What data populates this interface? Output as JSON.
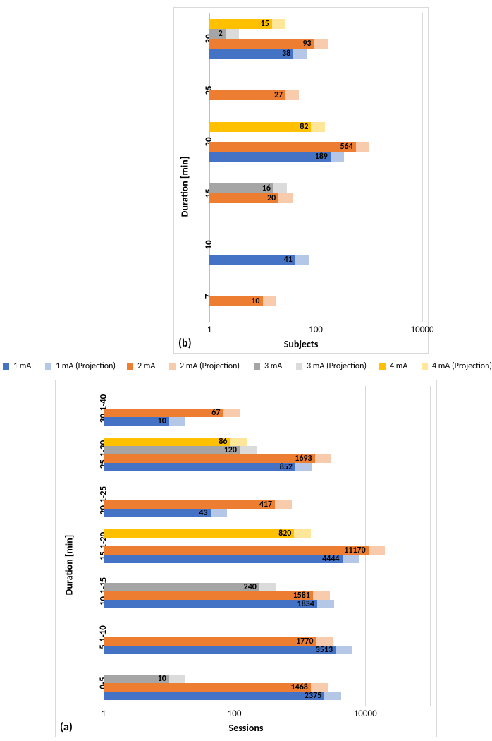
{
  "colors": {
    "blue": "#4472c4",
    "blue_proj": "#b4c7e7",
    "orange": "#ed7d31",
    "orange_proj": "#f8cbad",
    "gray": "#a5a5a5",
    "gray_proj": "#dbdbdb",
    "yellow": "#ffc000",
    "yellow_proj": "#ffe699",
    "gridline": "#d9d9d9",
    "border": "#d9d9d9",
    "axis": "#595959",
    "text": "#000000"
  },
  "legend": [
    {
      "label": "1 mA",
      "color": "#4472c4"
    },
    {
      "label": "1 mA (Projection)",
      "color": "#b4c7e7"
    },
    {
      "label": "2 mA",
      "color": "#ed7d31"
    },
    {
      "label": "2 mA (Projection)",
      "color": "#f8cbad"
    },
    {
      "label": "3 mA",
      "color": "#a5a5a5"
    },
    {
      "label": "3 mA (Projection)",
      "color": "#dbdbdb"
    },
    {
      "label": "4 mA",
      "color": "#ffc000"
    },
    {
      "label": "4 mA (Projection)",
      "color": "#ffe699"
    }
  ],
  "chart_b": {
    "panel_label": "(b)",
    "x_label": "Subjects",
    "y_label": "Duration [min]",
    "x_ticks": [
      "1",
      "100",
      "10000"
    ],
    "x_domain": [
      0,
      4
    ],
    "categories": [
      "7",
      "10",
      "15",
      "20",
      "25",
      "30"
    ],
    "proj_mult": 1.8,
    "groups": [
      {
        "cat": "7",
        "bars": [
          {
            "series": "2",
            "value": 10,
            "label": "10"
          }
        ]
      },
      {
        "cat": "10",
        "bars": [
          {
            "series": "1",
            "value": 41,
            "label": "41"
          }
        ]
      },
      {
        "cat": "15",
        "bars": [
          {
            "series": "2",
            "value": 20,
            "label": "20"
          },
          {
            "series": "3",
            "value": 16,
            "label": "16"
          }
        ]
      },
      {
        "cat": "20",
        "bars": [
          {
            "series": "1",
            "value": 189,
            "label": "189"
          },
          {
            "series": "2",
            "value": 564,
            "label": "564"
          },
          {
            "series": "4",
            "value": 82,
            "label": "82"
          }
        ]
      },
      {
        "cat": "25",
        "bars": [
          {
            "series": "2",
            "value": 27,
            "label": "27"
          }
        ]
      },
      {
        "cat": "30",
        "bars": [
          {
            "series": "1",
            "value": 38,
            "label": "38"
          },
          {
            "series": "2",
            "value": 93,
            "label": "93"
          },
          {
            "series": "3",
            "value": 2,
            "label": "2"
          },
          {
            "series": "4",
            "value": 15,
            "label": "15"
          }
        ]
      }
    ]
  },
  "chart_a": {
    "panel_label": "(a)",
    "x_label": "Sessions",
    "y_label": "Duration [min]",
    "x_ticks": [
      "1",
      "100",
      "10000"
    ],
    "x_domain": [
      0,
      5
    ],
    "categories": [
      "0-5",
      "5.1-10",
      "10.1-15",
      "15.1-20",
      "20.1-25",
      "25.1-30",
      "30.1-40"
    ],
    "proj_mult": 1.8,
    "groups": [
      {
        "cat": "0-5",
        "bars": [
          {
            "series": "1",
            "value": 2375,
            "label": "2375"
          },
          {
            "series": "2",
            "value": 1468,
            "label": "1468"
          },
          {
            "series": "3",
            "value": 10,
            "label": "10"
          }
        ]
      },
      {
        "cat": "5.1-10",
        "bars": [
          {
            "series": "1",
            "value": 3513,
            "label": "3513"
          },
          {
            "series": "2",
            "value": 1770,
            "label": "1770"
          }
        ]
      },
      {
        "cat": "10.1-15",
        "bars": [
          {
            "series": "1",
            "value": 1834,
            "label": "1834"
          },
          {
            "series": "2",
            "value": 1581,
            "label": "1581"
          },
          {
            "series": "3",
            "value": 240,
            "label": "240"
          }
        ]
      },
      {
        "cat": "15.1-20",
        "bars": [
          {
            "series": "1",
            "value": 4444,
            "label": "4444"
          },
          {
            "series": "2",
            "value": 11170,
            "label": "11170"
          },
          {
            "series": "4",
            "value": 820,
            "label": "820"
          }
        ]
      },
      {
        "cat": "20.1-25",
        "bars": [
          {
            "series": "1",
            "value": 43,
            "label": "43"
          },
          {
            "series": "2",
            "value": 417,
            "label": "417"
          }
        ]
      },
      {
        "cat": "25.1-30",
        "bars": [
          {
            "series": "1",
            "value": 852,
            "label": "852"
          },
          {
            "series": "2",
            "value": 1693,
            "label": "1693"
          },
          {
            "series": "3",
            "value": 120,
            "label": "120"
          },
          {
            "series": "4",
            "value": 86,
            "label": "86"
          }
        ]
      },
      {
        "cat": "30.1-40",
        "bars": [
          {
            "series": "1",
            "value": 10,
            "label": "10"
          },
          {
            "series": "2",
            "value": 67,
            "label": "67"
          }
        ]
      }
    ]
  },
  "series_colors": {
    "1": {
      "solid": "#4472c4",
      "proj": "#b4c7e7"
    },
    "2": {
      "solid": "#ed7d31",
      "proj": "#f8cbad"
    },
    "3": {
      "solid": "#a5a5a5",
      "proj": "#dbdbdb"
    },
    "4": {
      "solid": "#ffc000",
      "proj": "#ffe699"
    }
  },
  "typography": {
    "title_fontsize": 14,
    "tick_fontsize": 13,
    "bar_label_fontsize": 12,
    "legend_fontsize": 12
  }
}
